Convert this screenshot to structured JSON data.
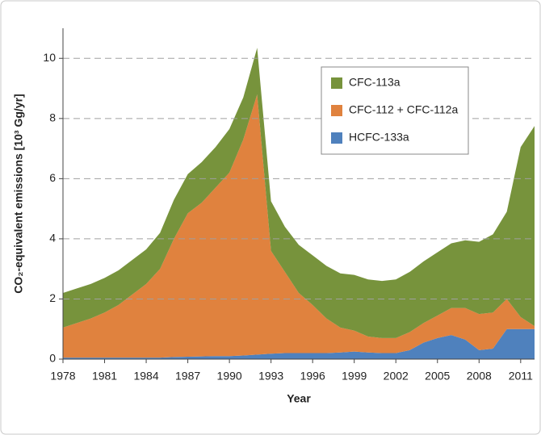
{
  "chart_data": {
    "type": "stacked_area",
    "xlabel": "Year",
    "ylabel": "CO₂-equivalent emissions [10³ Gg/yr]",
    "x": [
      1978,
      1979,
      1980,
      1981,
      1982,
      1983,
      1984,
      1985,
      1986,
      1987,
      1988,
      1989,
      1990,
      1991,
      1992,
      1993,
      1994,
      1995,
      1996,
      1997,
      1998,
      1999,
      2000,
      2001,
      2002,
      2003,
      2004,
      2005,
      2006,
      2007,
      2008,
      2009,
      2010,
      2011,
      2012
    ],
    "series": [
      {
        "name": "CFC-113a",
        "color": "#77933c",
        "values": [
          1.15,
          1.15,
          1.15,
          1.15,
          1.15,
          1.15,
          1.15,
          1.2,
          1.3,
          1.3,
          1.35,
          1.35,
          1.45,
          1.4,
          1.55,
          1.65,
          1.5,
          1.6,
          1.65,
          1.75,
          1.8,
          1.85,
          1.9,
          1.9,
          1.95,
          2.0,
          2.05,
          2.1,
          2.15,
          2.25,
          2.4,
          2.6,
          2.9,
          5.65,
          6.65
        ]
      },
      {
        "name": "CFC-112 + CFC-112a",
        "color": "#e0823e",
        "values": [
          1.0,
          1.15,
          1.3,
          1.5,
          1.75,
          2.1,
          2.45,
          2.95,
          3.93,
          4.77,
          5.11,
          5.6,
          6.1,
          7.18,
          8.65,
          3.42,
          2.7,
          2.0,
          1.6,
          1.15,
          0.83,
          0.7,
          0.53,
          0.5,
          0.5,
          0.6,
          0.65,
          0.75,
          0.9,
          1.05,
          1.2,
          1.2,
          1.0,
          0.4,
          0.1
        ]
      },
      {
        "name": "HCFC-133a",
        "color": "#4f81bd",
        "values": [
          0.05,
          0.05,
          0.05,
          0.05,
          0.05,
          0.05,
          0.05,
          0.05,
          0.07,
          0.08,
          0.09,
          0.1,
          0.1,
          0.12,
          0.15,
          0.18,
          0.2,
          0.2,
          0.2,
          0.2,
          0.22,
          0.25,
          0.22,
          0.2,
          0.2,
          0.3,
          0.55,
          0.7,
          0.8,
          0.65,
          0.3,
          0.35,
          1.0,
          1.0,
          1.0
        ]
      }
    ],
    "xlim": [
      1978,
      2012
    ],
    "xticks": [
      1978,
      1981,
      1984,
      1987,
      1990,
      1993,
      1996,
      1999,
      2002,
      2005,
      2008,
      2011
    ],
    "ylim": [
      0,
      11
    ],
    "yticks": [
      0,
      2,
      4,
      6,
      8,
      10
    ],
    "grid": true,
    "legend": "upper right"
  }
}
